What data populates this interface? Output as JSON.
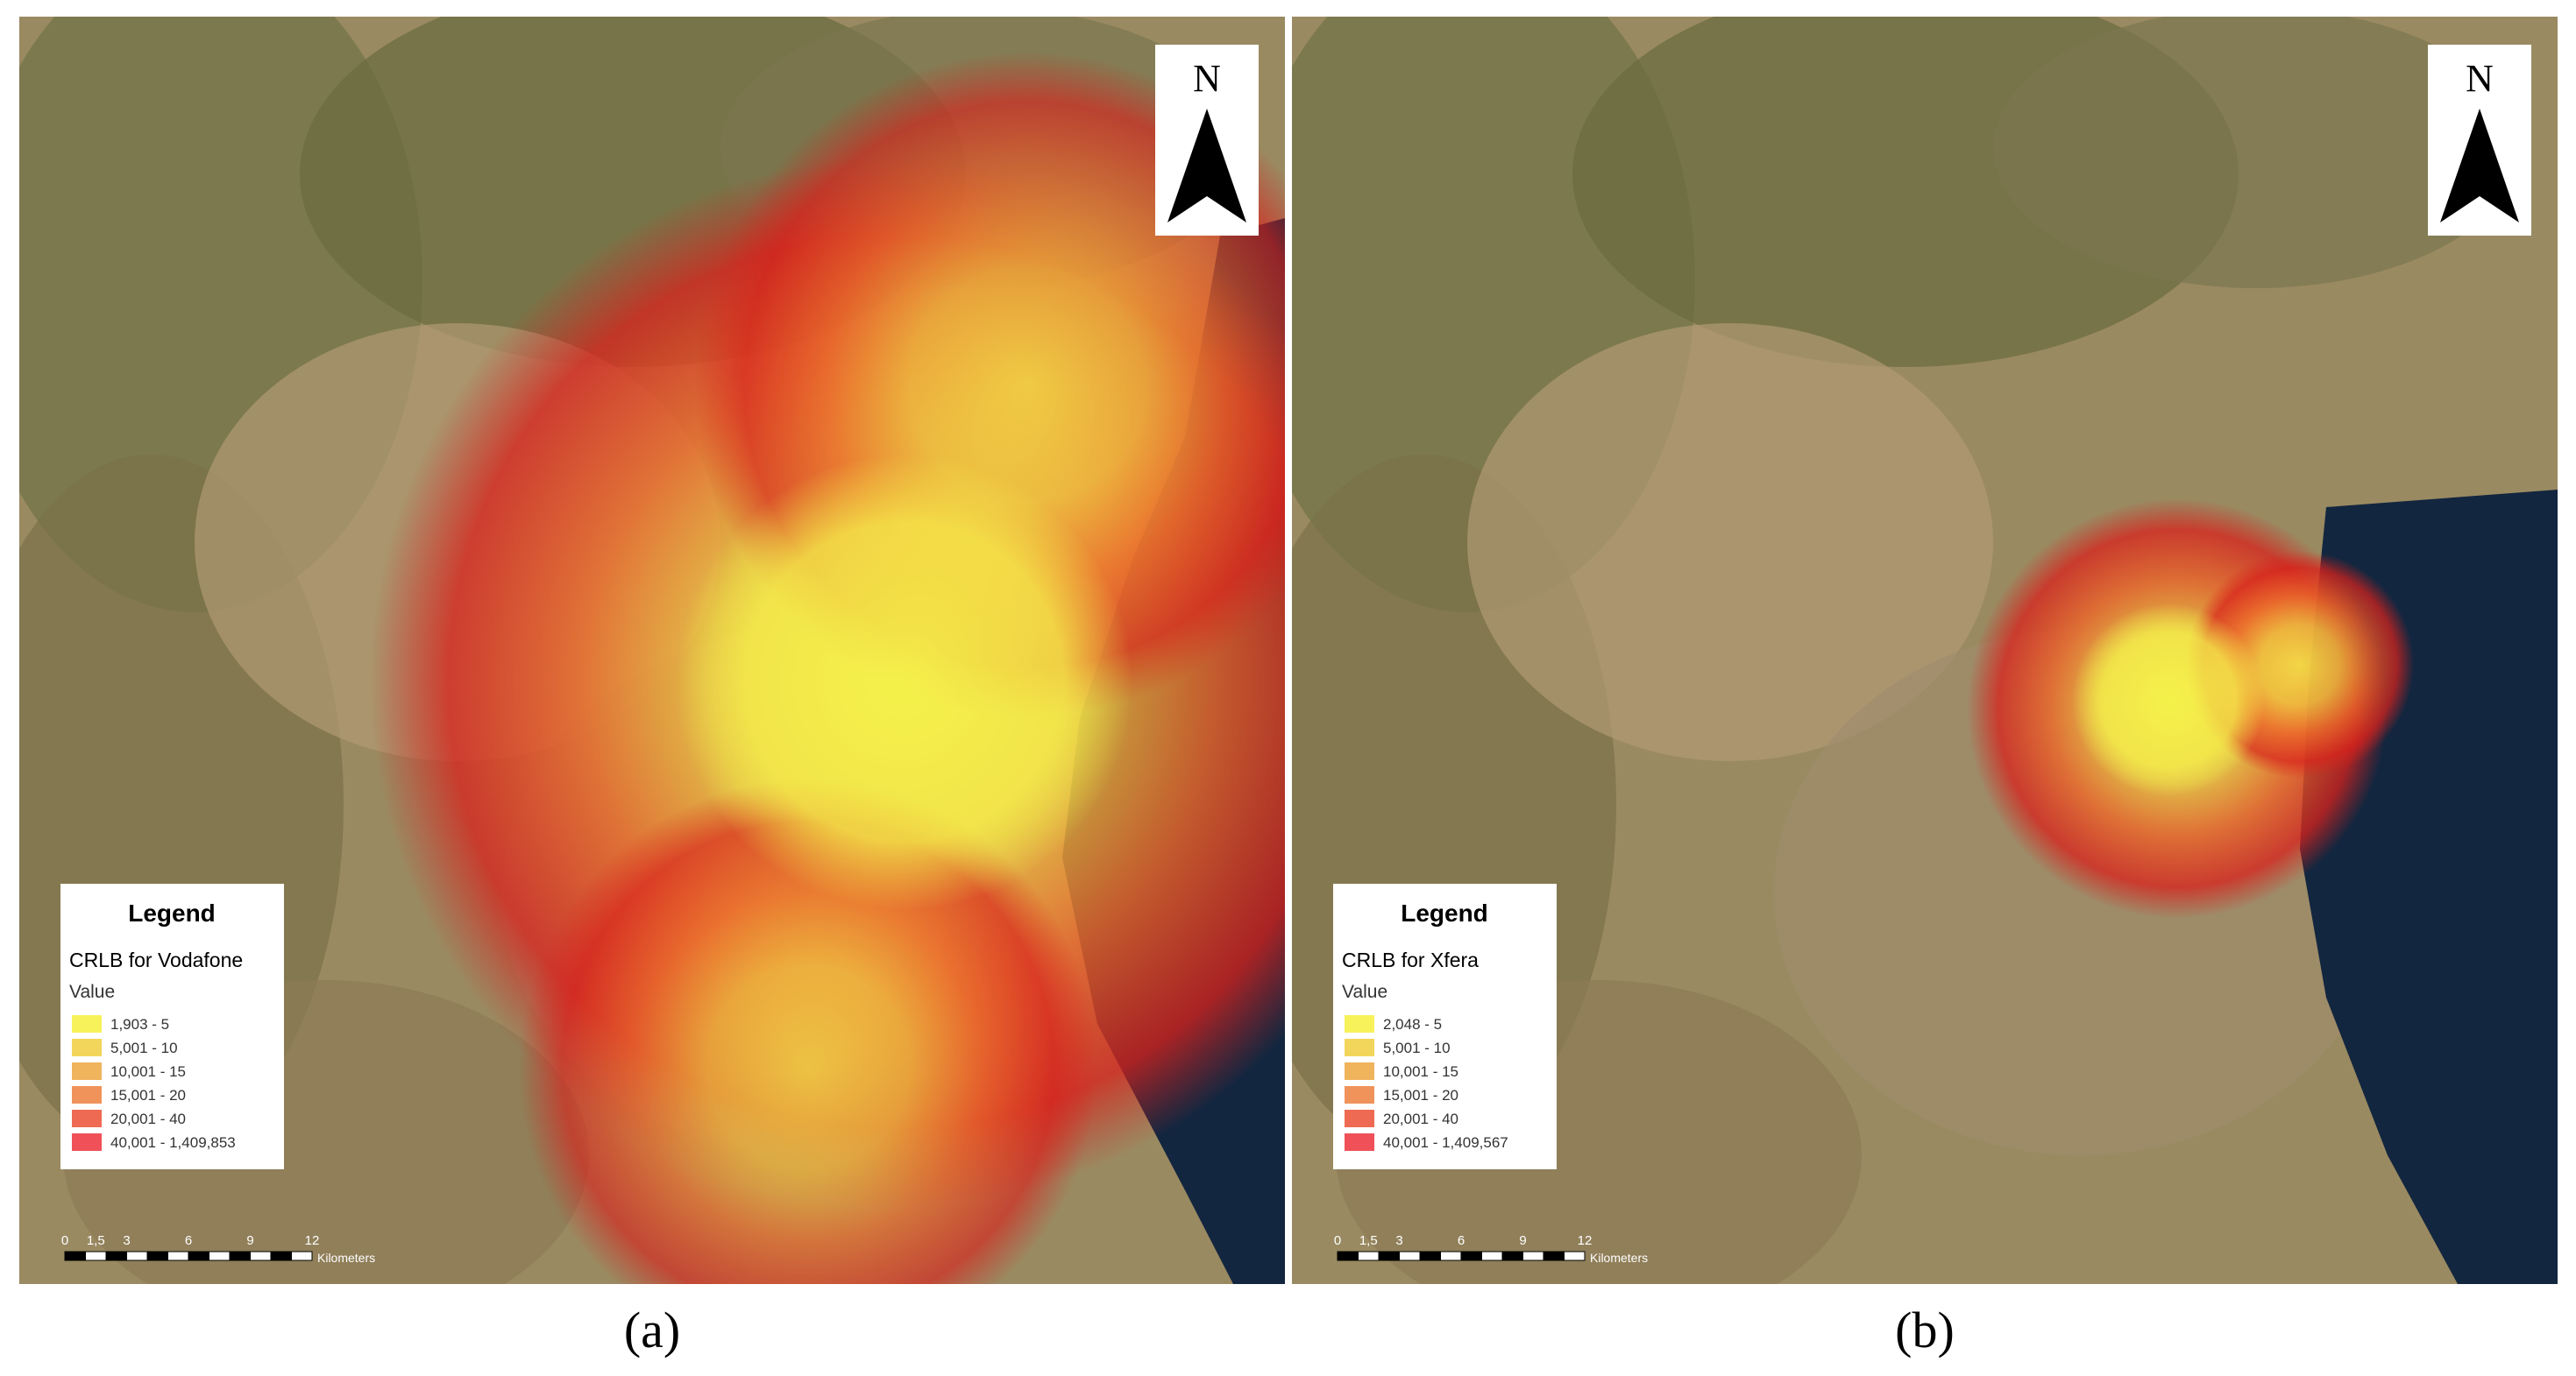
{
  "panels": [
    {
      "label": "(a)",
      "north": "N",
      "legend": {
        "title": "Legend",
        "layer": "CRLB for Vodafone",
        "field": "Value",
        "classes": [
          "1,903 - 5",
          "5,001 - 10",
          "10,001 - 15",
          "15,001 - 20",
          "20,001 - 40",
          "40,001 - 1,409,853"
        ]
      },
      "scale_bar": {
        "ticks": [
          "0",
          "1,5",
          "3",
          "6",
          "9",
          "12"
        ],
        "unit": "Kilometers"
      }
    },
    {
      "label": "(b)",
      "north": "N",
      "legend": {
        "title": "Legend",
        "layer": "CRLB for Xfera",
        "field": "Value",
        "classes": [
          "2,048 - 5",
          "5,001 - 10",
          "10,001 - 15",
          "15,001 - 20",
          "20,001 - 40",
          "40,001 - 1,409,567"
        ]
      },
      "scale_bar": {
        "ticks": [
          "0",
          "1,5",
          "3",
          "6",
          "9",
          "12"
        ],
        "unit": "Kilometers"
      }
    }
  ]
}
